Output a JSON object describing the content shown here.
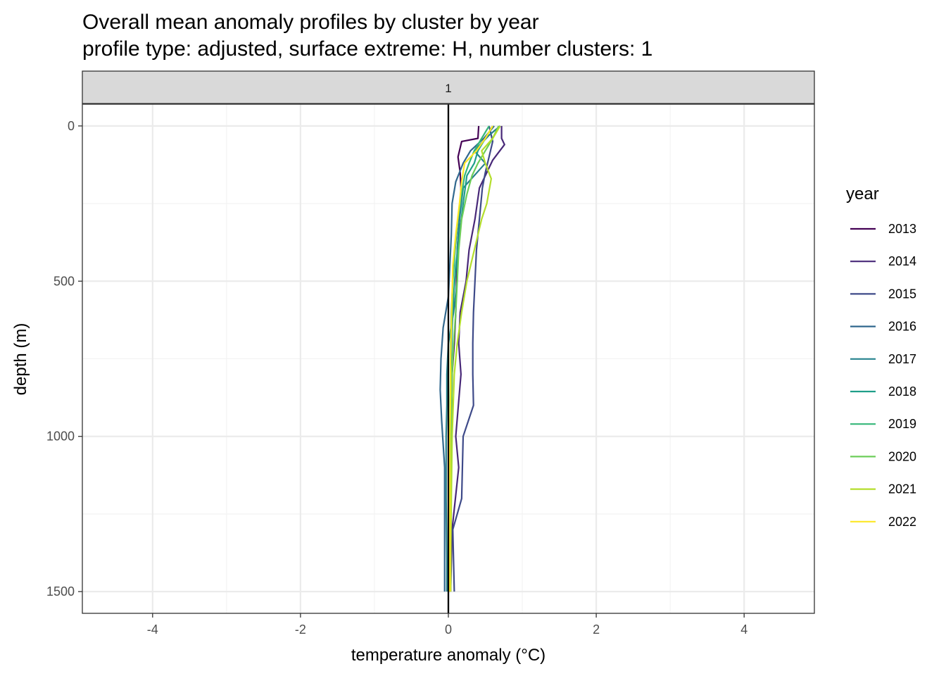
{
  "title": "Overall mean anomaly profiles by cluster by year",
  "subtitle": "profile type: adjusted, surface extreme: H, number clusters: 1",
  "chart_data": {
    "type": "line",
    "facet_label": "1",
    "xlabel": "temperature anomaly (°C)",
    "ylabel": "depth (m)",
    "xlim": [
      -4.95,
      4.95
    ],
    "ylim": [
      1570,
      -70
    ],
    "y_reversed": true,
    "x_ticks": [
      -4,
      -2,
      0,
      2,
      4
    ],
    "x_tick_labels": [
      "-4",
      "-2",
      "0",
      "2",
      "4"
    ],
    "y_ticks": [
      0,
      500,
      1000,
      1500
    ],
    "y_tick_labels": [
      "0",
      "500",
      "1000",
      "1500"
    ],
    "grid": true,
    "reference_line_x": 0,
    "legend_title": "year",
    "legend_position": "right",
    "series": [
      {
        "name": "2013",
        "color": "#440154",
        "x": [
          0.41,
          0.4,
          0.18,
          0.13,
          0.16,
          0.17,
          0.15,
          0.12,
          0.11,
          0.1,
          0.08,
          0.05,
          0.04,
          0.03,
          0.02,
          0.02
        ],
        "y": [
          0,
          40,
          50,
          100,
          150,
          200,
          300,
          400,
          500,
          600,
          700,
          800,
          1000,
          1200,
          1400,
          1500
        ]
      },
      {
        "name": "2014",
        "color": "#482878",
        "x": [
          0.72,
          0.72,
          0.76,
          0.6,
          0.52,
          0.42,
          0.36,
          0.28,
          0.24,
          0.16,
          0.14,
          0.17,
          0.1,
          0.14,
          0.05,
          0.03
        ],
        "y": [
          0,
          40,
          60,
          110,
          150,
          200,
          300,
          400,
          500,
          600,
          700,
          800,
          1000,
          1100,
          1300,
          1500
        ]
      },
      {
        "name": "2015",
        "color": "#3E4A89",
        "x": [
          0.55,
          0.6,
          0.55,
          0.5,
          0.46,
          0.42,
          0.38,
          0.36,
          0.34,
          0.33,
          0.33,
          0.34,
          0.2,
          0.18,
          0.06,
          0.08
        ],
        "y": [
          0,
          50,
          100,
          150,
          200,
          300,
          400,
          500,
          600,
          700,
          800,
          900,
          1000,
          1200,
          1300,
          1500
        ]
      },
      {
        "name": "2016",
        "color": "#31688E",
        "x": [
          0.62,
          0.48,
          0.3,
          0.2,
          0.1,
          0.05,
          0.04,
          0.02,
          0.0,
          -0.07,
          -0.1,
          -0.11,
          -0.09,
          -0.05,
          -0.05,
          -0.05
        ],
        "y": [
          0,
          40,
          80,
          120,
          180,
          250,
          350,
          450,
          550,
          650,
          750,
          850,
          950,
          1100,
          1300,
          1500
        ]
      },
      {
        "name": "2017",
        "color": "#26828E",
        "x": [
          0.7,
          0.55,
          0.35,
          0.5,
          0.2,
          0.15,
          0.12,
          0.12,
          0.07,
          0.0,
          -0.02,
          -0.02,
          -0.03,
          -0.03,
          -0.02,
          -0.02
        ],
        "y": [
          0,
          30,
          80,
          120,
          200,
          300,
          400,
          500,
          600,
          700,
          800,
          900,
          1000,
          1200,
          1400,
          1500
        ]
      },
      {
        "name": "2018",
        "color": "#1F9E89",
        "x": [
          0.6,
          0.5,
          0.4,
          0.35,
          0.25,
          0.2,
          0.15,
          0.1,
          0.07,
          0.05,
          0.04,
          0.03,
          0.02,
          0.02,
          0.01,
          0.01
        ],
        "y": [
          0,
          40,
          80,
          120,
          160,
          250,
          350,
          450,
          550,
          650,
          750,
          850,
          1000,
          1200,
          1400,
          1500
        ]
      },
      {
        "name": "2019",
        "color": "#35B779",
        "x": [
          0.55,
          0.45,
          0.35,
          0.28,
          0.22,
          0.18,
          0.13,
          0.09,
          0.06,
          0.04,
          0.03,
          0.03,
          0.02,
          0.02,
          0.02,
          0.02
        ],
        "y": [
          0,
          40,
          80,
          120,
          160,
          220,
          300,
          400,
          500,
          600,
          700,
          800,
          1000,
          1200,
          1400,
          1500
        ]
      },
      {
        "name": "2020",
        "color": "#6DCD59",
        "x": [
          0.68,
          0.6,
          0.5,
          0.4,
          0.32,
          0.25,
          0.18,
          0.14,
          0.12,
          0.1,
          0.07,
          0.05,
          0.04,
          0.03,
          0.03,
          0.03
        ],
        "y": [
          0,
          40,
          80,
          120,
          160,
          220,
          300,
          400,
          500,
          600,
          700,
          800,
          1000,
          1200,
          1400,
          1500
        ]
      },
      {
        "name": "2021",
        "color": "#B4DE2C",
        "x": [
          0.7,
          0.6,
          0.45,
          0.5,
          0.58,
          0.52,
          0.45,
          0.35,
          0.25,
          0.18,
          0.12,
          0.08,
          0.05,
          0.04,
          0.03,
          0.03
        ],
        "y": [
          0,
          40,
          80,
          120,
          170,
          250,
          300,
          400,
          500,
          600,
          700,
          800,
          1000,
          1200,
          1400,
          1500
        ]
      },
      {
        "name": "2022",
        "color": "#FDE725",
        "x": [
          0.6,
          0.5,
          0.38,
          0.22,
          0.18,
          0.15,
          0.1,
          0.06,
          0.05,
          0.04,
          0.03,
          0.03,
          0.02,
          0.02,
          0.02,
          0.02
        ],
        "y": [
          0,
          40,
          80,
          120,
          180,
          250,
          350,
          450,
          550,
          650,
          750,
          850,
          1000,
          1200,
          1400,
          1500
        ]
      }
    ]
  }
}
